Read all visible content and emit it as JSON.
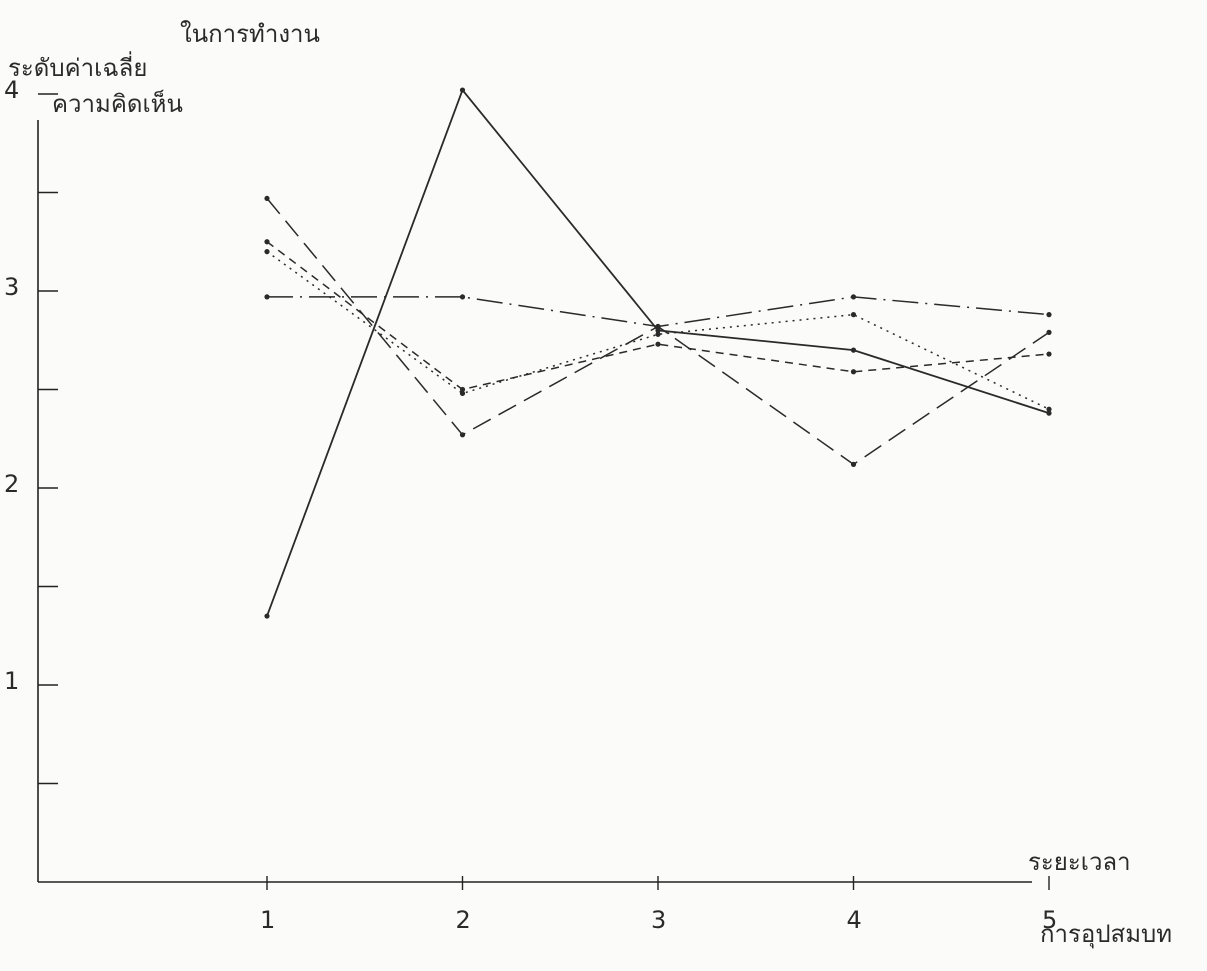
{
  "chart_data": {
    "type": "line",
    "ylabel_lines": [
      "ในการทำงาน",
      "ระดับค่าเฉลี่ย",
      "ความคิดเห็น"
    ],
    "xlabel_lines": [
      "ระยะเวลา",
      "การอุปสมบท"
    ],
    "x": [
      1,
      2,
      3,
      4,
      5
    ],
    "x_tick_labels": [
      "1",
      "2",
      "3",
      "4",
      "5"
    ],
    "y_tick_labels": [
      "1",
      "2",
      "3",
      "4"
    ],
    "xlim": [
      0,
      5.05
    ],
    "ylim": [
      0,
      4.05
    ],
    "y_ticks": [
      0.5,
      1,
      1.5,
      2,
      2.5,
      3,
      3.5,
      4
    ],
    "grid": false,
    "series": [
      {
        "values": [
          1.35,
          4.02,
          2.8,
          2.7,
          2.38
        ],
        "style": "solid"
      },
      {
        "values": [
          2.97,
          2.97,
          2.82,
          2.97,
          2.88
        ],
        "style": "dash-dot"
      },
      {
        "values": [
          3.47,
          2.27,
          2.82,
          2.12,
          2.79
        ],
        "style": "long-dash"
      },
      {
        "values": [
          3.25,
          2.5,
          2.73,
          2.59,
          2.68
        ],
        "style": "short-dash"
      },
      {
        "values": [
          3.2,
          2.48,
          2.78,
          2.88,
          2.4
        ],
        "style": "dotted"
      }
    ],
    "line_color": "#2a2a2a"
  }
}
